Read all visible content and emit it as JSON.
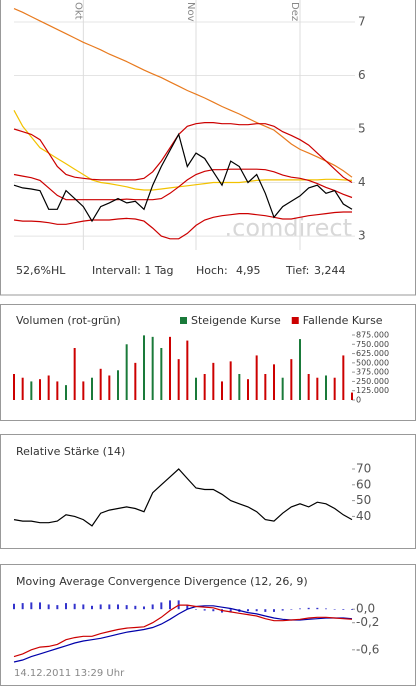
{
  "chart_data": [
    {
      "type": "line",
      "categories": [
        null,
        null,
        null,
        null,
        null,
        null,
        null,
        null,
        "Okt",
        null,
        null,
        null,
        null,
        null,
        null,
        null,
        null,
        null,
        null,
        null,
        null,
        "Nov",
        null,
        null,
        null,
        null,
        null,
        null,
        null,
        null,
        null,
        null,
        null,
        "Dez",
        null,
        null,
        null,
        null,
        null,
        null
      ],
      "series": [
        {
          "color": "#e87a1e",
          "values": [
            7.25,
            7.18,
            7.1,
            7.02,
            6.94,
            6.86,
            6.78,
            6.7,
            6.62,
            6.55,
            6.48,
            6.4,
            6.33,
            6.26,
            6.18,
            6.1,
            6.03,
            5.96,
            5.88,
            5.8,
            5.72,
            5.65,
            5.58,
            5.5,
            5.42,
            5.35,
            5.28,
            5.2,
            5.12,
            5.05,
            4.98,
            4.85,
            4.72,
            4.62,
            4.55,
            4.48,
            4.4,
            4.32,
            4.22,
            4.1
          ]
        },
        {
          "color": "#f2c200",
          "values": [
            5.35,
            5.05,
            4.85,
            4.65,
            4.55,
            4.45,
            4.35,
            4.25,
            4.15,
            4.05,
            4.0,
            3.98,
            3.95,
            3.92,
            3.88,
            3.86,
            3.86,
            3.88,
            3.9,
            3.92,
            3.94,
            3.96,
            3.98,
            4.0,
            4.0,
            4.0,
            4.0,
            4.02,
            4.04,
            4.05,
            4.05,
            4.05,
            4.05,
            4.05,
            4.05,
            4.05,
            4.06,
            4.06,
            4.05,
            4.04
          ]
        },
        {
          "color": "#cc0000",
          "values": [
            5.0,
            4.95,
            4.9,
            4.8,
            4.55,
            4.3,
            4.15,
            4.1,
            4.08,
            4.06,
            4.05,
            4.05,
            4.05,
            4.05,
            4.05,
            4.08,
            4.2,
            4.4,
            4.65,
            4.9,
            5.05,
            5.1,
            5.12,
            5.12,
            5.1,
            5.1,
            5.08,
            5.08,
            5.1,
            5.1,
            5.05,
            4.95,
            4.88,
            4.8,
            4.7,
            4.55,
            4.4,
            4.25,
            4.1,
            4.0
          ]
        },
        {
          "color": "#cc0000",
          "values": [
            4.15,
            4.12,
            4.09,
            4.04,
            3.9,
            3.76,
            3.68,
            3.68,
            3.68,
            3.68,
            3.68,
            3.68,
            3.68,
            3.69,
            3.68,
            3.68,
            3.68,
            3.7,
            3.8,
            3.92,
            4.05,
            4.15,
            4.21,
            4.24,
            4.24,
            4.25,
            4.25,
            4.25,
            4.25,
            4.24,
            4.2,
            4.14,
            4.1,
            4.08,
            4.04,
            3.98,
            3.91,
            3.85,
            3.78,
            3.72
          ]
        },
        {
          "color": "#cc0000",
          "values": [
            3.3,
            3.28,
            3.28,
            3.27,
            3.25,
            3.22,
            3.22,
            3.25,
            3.28,
            3.3,
            3.3,
            3.3,
            3.32,
            3.33,
            3.32,
            3.28,
            3.15,
            3.0,
            2.95,
            2.95,
            3.05,
            3.2,
            3.3,
            3.35,
            3.38,
            3.4,
            3.42,
            3.42,
            3.4,
            3.38,
            3.35,
            3.32,
            3.32,
            3.35,
            3.38,
            3.4,
            3.42,
            3.44,
            3.45,
            3.45
          ]
        },
        {
          "color": "#000000",
          "values": [
            3.95,
            3.9,
            3.88,
            3.85,
            3.5,
            3.5,
            3.85,
            3.7,
            3.55,
            3.28,
            3.55,
            3.62,
            3.7,
            3.62,
            3.65,
            3.5,
            3.95,
            4.3,
            4.6,
            4.9,
            4.3,
            4.55,
            4.45,
            4.2,
            3.95,
            4.4,
            4.3,
            4.0,
            4.15,
            3.8,
            3.35,
            3.55,
            3.65,
            3.75,
            3.9,
            3.95,
            3.8,
            3.85,
            3.6,
            3.5
          ]
        }
      ],
      "ylim": [
        2.74,
        7.41
      ],
      "yticks": [
        3,
        4,
        5,
        6,
        7
      ],
      "grid": true,
      "watermark": ".comdirect",
      "info": [
        "52,6%HL",
        "Intervall: 1 Tag",
        "Hoch:",
        "4,95",
        "Tief:",
        "3,244"
      ]
    },
    {
      "type": "bar",
      "title": "Volumen (rot-grün)",
      "series": [
        {
          "name": "Steigende Kurse",
          "color": "#1a7a3a",
          "values": [
            null,
            null,
            250000,
            null,
            null,
            null,
            200000,
            null,
            null,
            300000,
            null,
            null,
            400000,
            750000,
            null,
            870000,
            850000,
            700000,
            null,
            null,
            null,
            300000,
            null,
            null,
            null,
            null,
            350000,
            null,
            null,
            null,
            null,
            300000,
            null,
            820000,
            null,
            null,
            330000,
            null,
            null,
            null
          ]
        },
        {
          "name": "Fallende Kurse",
          "color": "#cc0000",
          "values": [
            350000,
            300000,
            null,
            280000,
            330000,
            250000,
            null,
            700000,
            250000,
            null,
            420000,
            330000,
            null,
            null,
            500000,
            null,
            null,
            null,
            850000,
            550000,
            800000,
            null,
            350000,
            500000,
            250000,
            520000,
            null,
            280000,
            600000,
            350000,
            480000,
            null,
            550000,
            null,
            350000,
            300000,
            null,
            300000,
            600000,
            100000
          ]
        }
      ],
      "ylim": [
        0,
        875000
      ],
      "yticks": [
        0,
        {
          "value": 125000,
          "label": "125.000"
        },
        {
          "value": 250000,
          "label": "250.000"
        },
        {
          "value": 375000,
          "label": "375.000"
        },
        {
          "value": 500000,
          "label": "500.000"
        },
        {
          "value": 625000,
          "label": "625.000"
        },
        {
          "value": 750000,
          "label": "750.000"
        },
        {
          "value": 875000,
          "label": "875.000"
        }
      ]
    },
    {
      "type": "line",
      "title": "Relative Stärke (14)",
      "series": [
        {
          "color": "#000000",
          "values": [
            38,
            37,
            37,
            36,
            36,
            37,
            41,
            40,
            38,
            34,
            42,
            44,
            45,
            46,
            45,
            43,
            55,
            60,
            65,
            70,
            64,
            58,
            57,
            57,
            54,
            50,
            48,
            46,
            43,
            38,
            37,
            42,
            46,
            48,
            46,
            49,
            48,
            45,
            41,
            38
          ]
        }
      ],
      "ylim": [
        27.6,
        75.7
      ],
      "yticks": [
        40,
        50,
        60,
        70
      ]
    },
    {
      "type": "line",
      "title": "Moving Average Convergence Divergence (12, 26, 9)",
      "series": [
        {
          "style": "bar",
          "color": "#3333cc",
          "values": [
            0.08,
            0.09,
            0.1,
            0.1,
            0.07,
            0.06,
            0.09,
            0.08,
            0.07,
            0.05,
            0.07,
            0.07,
            0.07,
            0.06,
            0.05,
            0.04,
            0.07,
            0.1,
            0.13,
            0.13,
            0.06,
            0.0,
            -0.02,
            -0.03,
            -0.05,
            -0.05,
            -0.04,
            -0.03,
            -0.03,
            -0.04,
            -0.04,
            -0.02,
            0.0,
            0.01,
            0.02,
            0.02,
            0.01,
            0.0,
            -0.01,
            -0.01
          ]
        },
        {
          "color": "#0000aa",
          "values": [
            -0.78,
            -0.75,
            -0.7,
            -0.66,
            -0.62,
            -0.58,
            -0.54,
            -0.5,
            -0.47,
            -0.45,
            -0.43,
            -0.4,
            -0.37,
            -0.34,
            -0.32,
            -0.3,
            -0.27,
            -0.22,
            -0.15,
            -0.07,
            0.0,
            0.04,
            0.05,
            0.05,
            0.03,
            0.01,
            -0.02,
            -0.05,
            -0.07,
            -0.1,
            -0.13,
            -0.15,
            -0.16,
            -0.16,
            -0.15,
            -0.14,
            -0.13,
            -0.13,
            -0.13,
            -0.14
          ]
        },
        {
          "color": "#cc0000",
          "values": [
            -0.7,
            -0.66,
            -0.6,
            -0.56,
            -0.55,
            -0.52,
            -0.45,
            -0.42,
            -0.4,
            -0.4,
            -0.36,
            -0.33,
            -0.3,
            -0.28,
            -0.27,
            -0.26,
            -0.2,
            -0.12,
            -0.02,
            0.06,
            0.06,
            0.04,
            0.03,
            0.02,
            -0.02,
            -0.04,
            -0.06,
            -0.08,
            -0.1,
            -0.14,
            -0.17,
            -0.17,
            -0.16,
            -0.15,
            -0.13,
            -0.12,
            -0.12,
            -0.13,
            -0.14,
            -0.15
          ]
        }
      ],
      "ylim": [
        -0.78,
        0.18
      ],
      "yticks": [
        {
          "value": 0,
          "label": "0,0"
        },
        {
          "value": -0.2,
          "label": "-0,2"
        },
        {
          "value": -0.6,
          "label": "-0,6"
        }
      ]
    }
  ],
  "timestamp": "14.12.2011 13:29 Uhr"
}
